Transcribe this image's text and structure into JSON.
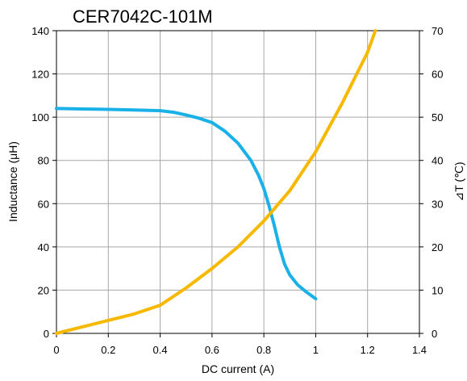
{
  "chart_data": {
    "type": "line",
    "title": "CER7042C-101M",
    "xlabel": "DC current (A)",
    "ylabel_left": "Inductance (μH)",
    "ylabel_right": "⊿T (℃)",
    "xlim": [
      0,
      1.4
    ],
    "ylim_left": [
      0,
      140
    ],
    "ylim_right": [
      0,
      70
    ],
    "x_ticks": [
      "0",
      "0.2",
      "0.4",
      "0.6",
      "0.8",
      "1",
      "1.2",
      "1.4"
    ],
    "y_left_ticks": [
      "0",
      "20",
      "40",
      "60",
      "80",
      "100",
      "120",
      "140"
    ],
    "y_right_ticks": [
      "0",
      "10",
      "20",
      "30",
      "40",
      "50",
      "60",
      "70"
    ],
    "grid": true,
    "series": [
      {
        "axis": "left",
        "color": "#1ab0e8",
        "x": [
          0,
          0.1,
          0.2,
          0.3,
          0.4,
          0.45,
          0.5,
          0.55,
          0.6,
          0.65,
          0.7,
          0.75,
          0.78,
          0.8,
          0.82,
          0.84,
          0.86,
          0.88,
          0.9,
          0.93,
          0.96,
          1.0
        ],
        "y": [
          104,
          103.8,
          103.6,
          103.3,
          103,
          102.3,
          101,
          99.5,
          97.5,
          93.5,
          88,
          80,
          73,
          67,
          59,
          50,
          40,
          32,
          27,
          22.5,
          19.5,
          16
        ]
      },
      {
        "axis": "right",
        "color": "#f7b800",
        "x": [
          0,
          0.1,
          0.2,
          0.3,
          0.4,
          0.5,
          0.6,
          0.7,
          0.8,
          0.9,
          1.0,
          1.1,
          1.2,
          1.23
        ],
        "y": [
          0,
          1.5,
          3,
          4.5,
          6.5,
          10.5,
          15,
          20,
          26,
          33,
          42,
          53,
          65,
          70
        ]
      }
    ]
  }
}
